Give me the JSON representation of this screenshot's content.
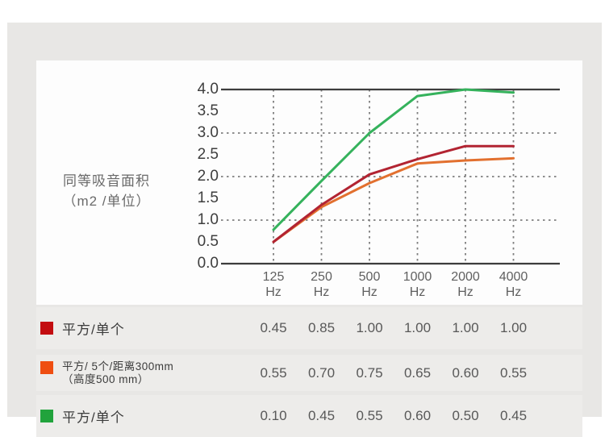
{
  "ylabel": {
    "line1": "同等吸音面积",
    "line2": "（m2 /单位）"
  },
  "chart_data": {
    "type": "line",
    "categories": [
      "125 Hz",
      "250 Hz",
      "500 Hz",
      "1000 Hz",
      "2000 Hz",
      "4000 Hz"
    ],
    "xlabel": "",
    "ylabel": "同等吸音面积（m2 /单位）",
    "ylim": [
      0,
      4
    ],
    "y_ticks": [
      "4.0",
      "3.5",
      "3.0",
      "2.5",
      "2.0",
      "1.5",
      "1.0",
      "0.5",
      "0.0"
    ],
    "grid_y_values": [
      3,
      2,
      1
    ],
    "grid": "dashed horizontal at 3.0/2.0/1.0, dashed vertical at each frequency, solid lines at 4.0 and 0.0",
    "legend_position": "table below chart",
    "series": [
      {
        "name": "平方/单个",
        "line_color": "#b22432",
        "values": [
          0.5,
          1.35,
          2.05,
          2.4,
          2.7,
          2.7
        ]
      },
      {
        "name": "平方/ 5个/距离300mm（高度500 mm）",
        "line_color": "#e2702f",
        "values": [
          0.5,
          1.3,
          1.85,
          2.3,
          2.37,
          2.42
        ]
      },
      {
        "name": "平方/单个",
        "line_color": "#35b25c",
        "values": [
          0.78,
          1.9,
          3.0,
          3.85,
          4.0,
          3.93
        ]
      }
    ],
    "colors": {
      "axis_line": "#3d3d3d",
      "grid_line": "#7e7e7e"
    },
    "draw_order": [
      1,
      0,
      2
    ]
  },
  "table": {
    "rows": [
      {
        "swatch_color": "#c30d10",
        "label_lines": [
          "平方/单个"
        ],
        "values": [
          "0.45",
          "0.85",
          "1.00",
          "1.00",
          "1.00",
          "1.00"
        ]
      },
      {
        "swatch_color": "#ef4e11",
        "label_lines": [
          "平方/ 5个/距离300mm",
          "（高度500 mm）"
        ],
        "values": [
          "0.55",
          "0.70",
          "0.75",
          "0.65",
          "0.60",
          "0.55"
        ]
      },
      {
        "swatch_color": "#21a33c",
        "label_lines": [
          "平方/单个"
        ],
        "values": [
          "0.10",
          "0.45",
          "0.55",
          "0.60",
          "0.50",
          "0.45"
        ]
      }
    ]
  }
}
